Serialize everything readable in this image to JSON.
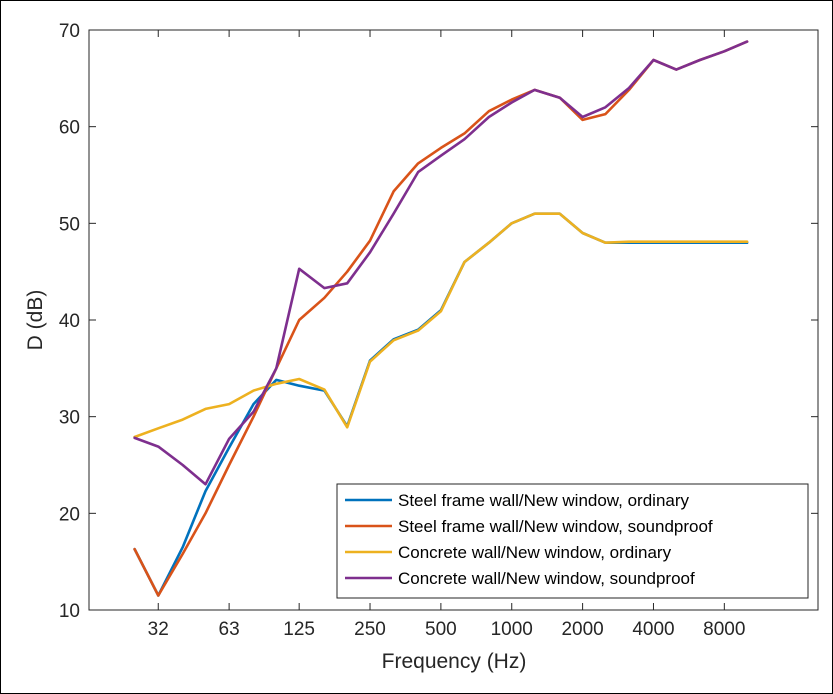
{
  "chart_data": {
    "type": "line",
    "xlabel": "Frequency (Hz)",
    "ylabel": "D (dB)",
    "x_scale": "log",
    "ylim": [
      10,
      70
    ],
    "xlim": [
      16,
      20000
    ],
    "grid": false,
    "legend_position": "bottom-right",
    "x_ticks": [
      {
        "value": 31.5,
        "label": "32"
      },
      {
        "value": 63,
        "label": "63"
      },
      {
        "value": 125,
        "label": "125"
      },
      {
        "value": 250,
        "label": "250"
      },
      {
        "value": 500,
        "label": "500"
      },
      {
        "value": 1000,
        "label": "1000"
      },
      {
        "value": 2000,
        "label": "2000"
      },
      {
        "value": 4000,
        "label": "4000"
      },
      {
        "value": 8000,
        "label": "8000"
      }
    ],
    "y_ticks": [
      {
        "value": 10,
        "label": "10"
      },
      {
        "value": 20,
        "label": "20"
      },
      {
        "value": 30,
        "label": "30"
      },
      {
        "value": 40,
        "label": "40"
      },
      {
        "value": 50,
        "label": "50"
      },
      {
        "value": 60,
        "label": "60"
      },
      {
        "value": 70,
        "label": "70"
      }
    ],
    "x": [
      25,
      31.5,
      40,
      50,
      63,
      80,
      100,
      125,
      160,
      200,
      250,
      315,
      400,
      500,
      630,
      800,
      1000,
      1250,
      1600,
      2000,
      2500,
      3150,
      4000,
      5000,
      6300,
      8000,
      10000
    ],
    "series": [
      {
        "name": "Steel frame wall/New window, ordinary",
        "color": "#0072BD",
        "values": [
          16.3,
          11.5,
          16.5,
          22.3,
          26.8,
          31.3,
          33.8,
          33.2,
          32.7,
          29.0,
          35.8,
          38.0,
          39.0,
          41.0,
          46.0,
          48.0,
          50.0,
          51.0,
          51.0,
          49.0,
          48.0,
          48.0,
          48.0,
          48.0,
          48.0,
          48.0,
          48.0
        ]
      },
      {
        "name": "Steel frame wall/New window, soundproof",
        "color": "#D95319",
        "values": [
          16.3,
          11.5,
          15.8,
          20.0,
          25.0,
          30.0,
          35.0,
          40.0,
          42.3,
          45.0,
          48.2,
          53.3,
          56.2,
          57.8,
          59.3,
          61.6,
          62.8,
          63.8,
          63.0,
          60.7,
          61.3,
          63.8,
          66.9,
          65.9,
          66.9,
          67.8,
          68.8
        ]
      },
      {
        "name": "Concrete wall/New window, ordinary",
        "color": "#EDB120",
        "values": [
          27.9,
          28.8,
          29.7,
          30.8,
          31.3,
          32.7,
          33.4,
          33.9,
          32.8,
          28.9,
          35.7,
          37.9,
          38.9,
          40.9,
          46.0,
          48.0,
          50.0,
          51.0,
          51.0,
          49.0,
          48.0,
          48.1,
          48.1,
          48.1,
          48.1,
          48.1,
          48.1
        ]
      },
      {
        "name": "Concrete wall/New window, soundproof",
        "color": "#7E2F8E",
        "values": [
          27.8,
          26.9,
          25.0,
          23.0,
          27.7,
          30.5,
          35.0,
          45.3,
          43.3,
          43.8,
          47.0,
          51.0,
          55.3,
          57.0,
          58.7,
          61.0,
          62.5,
          63.8,
          63.0,
          61.0,
          62.0,
          64.0,
          66.9,
          65.9,
          66.9,
          67.8,
          68.8
        ]
      }
    ]
  }
}
